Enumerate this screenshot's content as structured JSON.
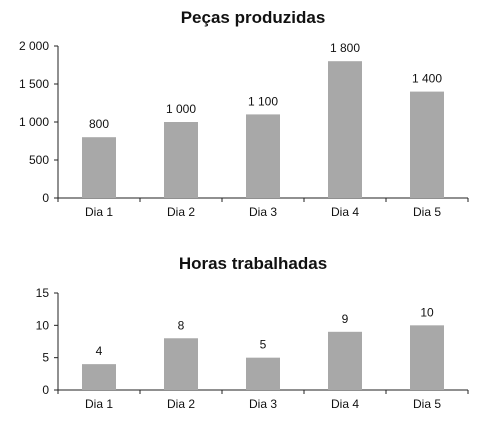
{
  "chart_data": [
    {
      "type": "bar",
      "title": "Peças produzidas",
      "categories": [
        "Dia 1",
        "Dia 2",
        "Dia 3",
        "Dia 4",
        "Dia 5"
      ],
      "values": [
        800,
        1000,
        1100,
        1800,
        1400
      ],
      "value_labels": [
        "800",
        "1 000",
        "1 100",
        "1 800",
        "1 400"
      ],
      "yticks": [
        0,
        500,
        1000,
        1500,
        2000
      ],
      "ytick_labels": [
        "0",
        "500",
        "1 000",
        "1 500",
        "2 000"
      ],
      "ylim": [
        0,
        2000
      ],
      "grid": false,
      "bar_color": "#a8a8a8"
    },
    {
      "type": "bar",
      "title": "Horas trabalhadas",
      "categories": [
        "Dia 1",
        "Dia 2",
        "Dia 3",
        "Dia 4",
        "Dia 5"
      ],
      "values": [
        4,
        8,
        5,
        9,
        10
      ],
      "value_labels": [
        "4",
        "8",
        "5",
        "9",
        "10"
      ],
      "yticks": [
        0,
        5,
        10,
        15
      ],
      "ytick_labels": [
        "0",
        "5",
        "10",
        "15"
      ],
      "ylim": [
        0,
        15
      ],
      "grid": false,
      "bar_color": "#a8a8a8"
    }
  ]
}
